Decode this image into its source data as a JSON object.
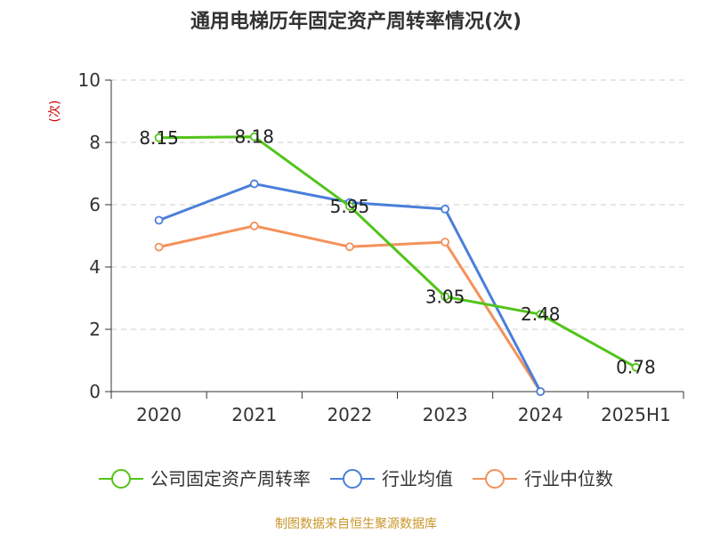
{
  "title": "通用电梯历年固定资产周转率情况(次)",
  "source": "制图数据来自恒生聚源数据库",
  "chart_data": {
    "type": "line",
    "title": "通用电梯历年固定资产周转率情况(次)",
    "ylabel": "(次)",
    "xlabel": "",
    "ylim": [
      0,
      10
    ],
    "yticks": [
      0,
      2,
      4,
      6,
      8,
      10
    ],
    "grid": true,
    "legend_position": "bottom",
    "categories": [
      "2020",
      "2021",
      "2022",
      "2023",
      "2024",
      "2025H1"
    ],
    "series": [
      {
        "name": "公司固定资产周转率",
        "color": "#52c41a",
        "values": [
          8.15,
          8.18,
          5.95,
          3.05,
          2.48,
          0.78
        ],
        "labels": [
          "8.15",
          "8.18",
          "5.95",
          "3.05",
          "2.48",
          "0.78"
        ]
      },
      {
        "name": "行业均值",
        "color": "#4a7fd9",
        "values": [
          5.5,
          6.67,
          6.07,
          5.86,
          0.0,
          null
        ]
      },
      {
        "name": "行业中位数",
        "color": "#f4915a",
        "values": [
          4.64,
          5.32,
          4.65,
          4.8,
          0.0,
          null
        ]
      }
    ]
  }
}
